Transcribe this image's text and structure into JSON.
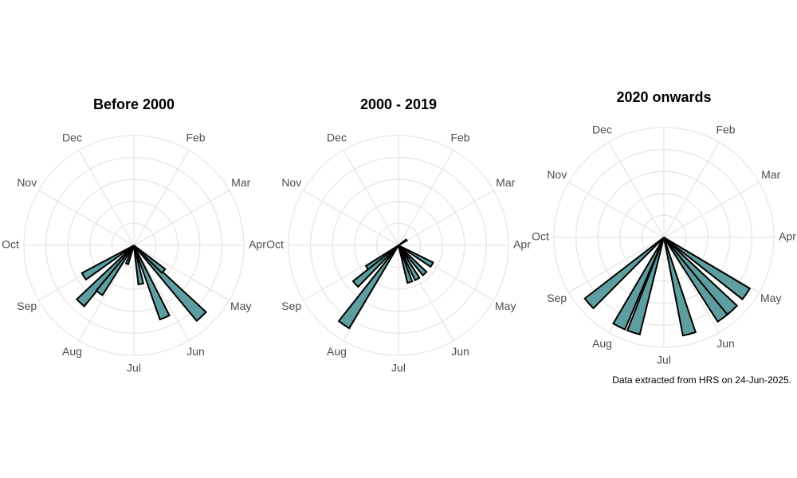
{
  "chart_data": [
    {
      "type": "polar-bar",
      "title": "Before 2000",
      "color": "#5f9ea0",
      "x": [
        7.43,
        7.94,
        7.2,
        5.23,
        4.55,
        5.66,
        4.36,
        6.67
      ],
      "values": [
        4,
        3,
        3,
        4,
        5,
        2,
        2,
        1
      ],
      "xlim": [
        0,
        12
      ],
      "xticks": [
        {
          "value": 1,
          "label": "Feb"
        },
        {
          "value": 2,
          "label": "Mar"
        },
        {
          "value": 3,
          "label": "Apr"
        },
        {
          "value": 4,
          "label": "May"
        },
        {
          "value": 5,
          "label": "Jun"
        },
        {
          "value": 6,
          "label": "Jul"
        },
        {
          "value": 7,
          "label": "Aug"
        },
        {
          "value": 8,
          "label": "Sep"
        },
        {
          "value": 9,
          "label": "Oct"
        },
        {
          "value": 10,
          "label": "Nov"
        },
        {
          "value": 11,
          "label": "Dec"
        }
      ],
      "ylim": [
        0,
        5.6
      ],
      "grid": true
    },
    {
      "type": "polar-bar",
      "title": "2000 - 2019",
      "color": "#5f9ea0",
      "x": [
        7.15,
        7.8,
        7.6,
        4.0,
        4.57,
        5.03,
        5.43,
        1.87
      ],
      "values": [
        5,
        2,
        3,
        2,
        2,
        2,
        2,
        0.5
      ],
      "xlim": [
        0,
        12
      ],
      "xticks": [
        {
          "value": 1,
          "label": "Feb"
        },
        {
          "value": 2,
          "label": "Mar"
        },
        {
          "value": 3,
          "label": "Apr"
        },
        {
          "value": 4,
          "label": "May"
        },
        {
          "value": 5,
          "label": "Jun"
        },
        {
          "value": 6,
          "label": "Jul"
        },
        {
          "value": 7,
          "label": "Aug"
        },
        {
          "value": 8,
          "label": "Sep"
        },
        {
          "value": 9,
          "label": "Oct"
        },
        {
          "value": 10,
          "label": "Nov"
        },
        {
          "value": 11,
          "label": "Dec"
        }
      ],
      "ylim": [
        0,
        5.7
      ],
      "grid": true
    },
    {
      "type": "polar-bar",
      "title": "2020 onwards",
      "color": "#5f9ea0",
      "x": [
        7.62,
        6.89,
        6.59,
        5.51,
        4.79,
        4.56,
        4.15
      ],
      "values": [
        1,
        1,
        1,
        1,
        1,
        1,
        1
      ],
      "xlim": [
        0,
        12
      ],
      "xticks": [
        {
          "value": 1,
          "label": "Feb"
        },
        {
          "value": 2,
          "label": "Mar"
        },
        {
          "value": 3,
          "label": "Apr"
        },
        {
          "value": 4,
          "label": "May"
        },
        {
          "value": 5,
          "label": "Jun"
        },
        {
          "value": 6,
          "label": "Jul"
        },
        {
          "value": 7,
          "label": "Aug"
        },
        {
          "value": 8,
          "label": "Sep"
        },
        {
          "value": 9,
          "label": "Oct"
        },
        {
          "value": 10,
          "label": "Nov"
        },
        {
          "value": 11,
          "label": "Dec"
        }
      ],
      "ylim": [
        0,
        1.1
      ],
      "grid": true
    }
  ],
  "caption": "Data extracted from HRS on 24-Jun-2025."
}
